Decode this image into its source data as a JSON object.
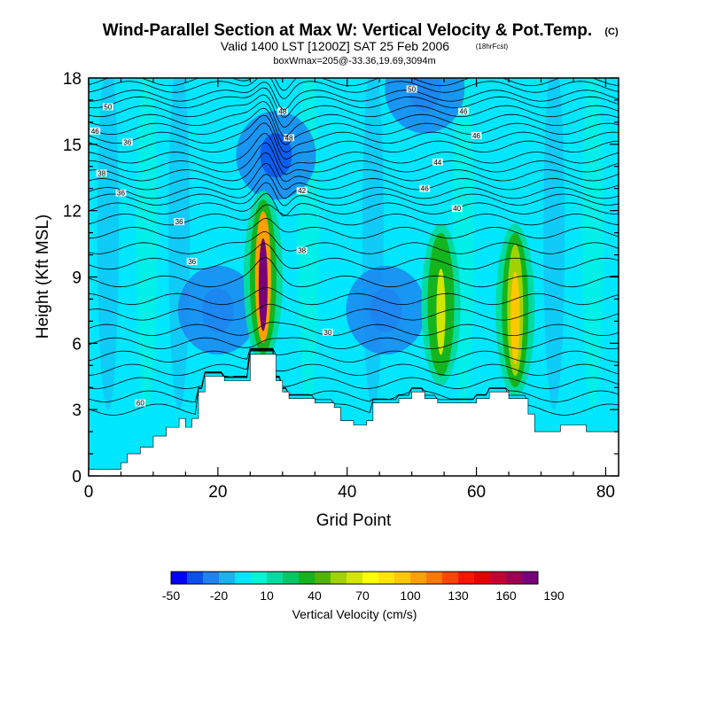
{
  "chart_data": {
    "type": "heatmap",
    "title": "Wind-Parallel Section at Max W: Vertical Velocity & Pot.Temp.",
    "title_mark": "(C)",
    "subtitle": "Valid 1400 LST [1200Z] SAT 25 Feb 2006",
    "subtitle_note": "(18hrFcst)",
    "info_line": "boxWmax=205@-33.36,19.69,3094m",
    "xlabel": "Grid Point",
    "ylabel": "Height (Kft MSL)",
    "xlim": [
      0,
      82
    ],
    "ylim": [
      0,
      18
    ],
    "x_ticks": [
      0,
      20,
      40,
      60,
      80
    ],
    "y_ticks": [
      0,
      3,
      6,
      9,
      12,
      15,
      18
    ],
    "colorbar": {
      "label": "Vertical Velocity (cm/s)",
      "tick_labels": [
        "-50",
        "-20",
        "10",
        "40",
        "70",
        "100",
        "130",
        "160",
        "190"
      ],
      "colors": [
        "#0000ff",
        "#0a50f0",
        "#1e82f0",
        "#19b4f0",
        "#00e6ff",
        "#00f5d2",
        "#00dca0",
        "#00c864",
        "#14b41e",
        "#50b400",
        "#a0d200",
        "#d2e600",
        "#ffff00",
        "#ffe600",
        "#ffc800",
        "#ffa000",
        "#ff7800",
        "#ff4600",
        "#ff1400",
        "#e60000",
        "#c80032",
        "#a00050",
        "#780078"
      ]
    },
    "updrafts": [
      {
        "x": 27,
        "y_bottom": 5.5,
        "y_top": 12.5,
        "peak": 205
      },
      {
        "x": 54.5,
        "y_bottom": 4.5,
        "y_top": 11,
        "peak": 60
      },
      {
        "x": 66,
        "y_bottom": 4,
        "y_top": 11,
        "peak": 90
      }
    ],
    "downdrafts": [
      {
        "x": 20,
        "y": 7.5,
        "value": -35
      },
      {
        "x": 46,
        "y": 7.5,
        "value": -30
      },
      {
        "x": 29,
        "y": 14.5,
        "value": -40
      },
      {
        "x": 52,
        "y": 17.5,
        "value": -30
      }
    ],
    "terrain": [
      [
        0,
        0.3
      ],
      [
        3,
        0.3
      ],
      [
        5,
        0.6
      ],
      [
        6,
        1.0
      ],
      [
        8,
        1.3
      ],
      [
        10,
        1.8
      ],
      [
        12,
        2.2
      ],
      [
        14,
        2.6
      ],
      [
        15,
        2.2
      ],
      [
        16,
        2.6
      ],
      [
        17,
        3.8
      ],
      [
        18,
        4.5
      ],
      [
        20,
        4.5
      ],
      [
        21,
        4.3
      ],
      [
        24,
        4.3
      ],
      [
        25,
        5.5
      ],
      [
        28,
        5.5
      ],
      [
        29,
        4.3
      ],
      [
        30,
        3.8
      ],
      [
        31,
        3.5
      ],
      [
        35,
        3.3
      ],
      [
        38,
        3.1
      ],
      [
        39,
        2.5
      ],
      [
        41,
        2.3
      ],
      [
        43,
        2.5
      ],
      [
        44,
        3.3
      ],
      [
        48,
        3.5
      ],
      [
        50,
        3.8
      ],
      [
        52,
        3.5
      ],
      [
        54,
        3.3
      ],
      [
        58,
        3.3
      ],
      [
        60,
        3.5
      ],
      [
        62,
        3.8
      ],
      [
        65,
        3.5
      ],
      [
        68,
        2.8
      ],
      [
        69,
        2.0
      ],
      [
        72,
        2.0
      ],
      [
        73,
        2.3
      ],
      [
        76,
        2.3
      ],
      [
        77,
        2.0
      ],
      [
        82,
        2.0
      ]
    ],
    "isentropes": [
      {
        "label": "60",
        "base": 3.0,
        "label_x": 8,
        "label_y": 3.3
      },
      {
        "label": "",
        "base": 3.6
      },
      {
        "label": "",
        "base": 4.2
      },
      {
        "label": "",
        "base": 4.8
      },
      {
        "label": "",
        "base": 5.4
      },
      {
        "label": "",
        "base": 6.0
      },
      {
        "label": "",
        "base": 6.6
      },
      {
        "label": "",
        "base": 7.3
      },
      {
        "label": "30",
        "base": 8.0,
        "label_x": 37,
        "label_y": 6.5
      },
      {
        "label": "",
        "base": 8.8
      },
      {
        "label": "36",
        "base": 9.6,
        "label_x": 16,
        "label_y": 9.7
      },
      {
        "label": "38",
        "base": 10.3,
        "label_x": 33,
        "label_y": 10.2
      },
      {
        "label": "",
        "base": 11.0
      },
      {
        "label": "36",
        "base": 11.6,
        "label_x": 14,
        "label_y": 11.5
      },
      {
        "label": "40",
        "base": 12.1,
        "label_x": 57,
        "label_y": 12.1
      },
      {
        "label": "",
        "base": 12.5
      },
      {
        "label": "36",
        "base": 12.8,
        "label_x": 5,
        "label_y": 12.8
      },
      {
        "label": "42",
        "base": 13.2,
        "label_x": 33,
        "label_y": 12.9
      },
      {
        "label": "46",
        "base": 13.6,
        "label_x": 52,
        "label_y": 13.0
      },
      {
        "label": "",
        "base": 14.0
      },
      {
        "label": "44",
        "base": 14.4,
        "label_x": 54,
        "label_y": 14.2
      },
      {
        "label": "38",
        "base": 14.9,
        "label_x": 2,
        "label_y": 13.7
      },
      {
        "label": "36",
        "base": 15.3,
        "label_x": 6,
        "label_y": 15.1
      },
      {
        "label": "48",
        "base": 15.7,
        "label_x": 31,
        "label_y": 15.3
      },
      {
        "label": "46",
        "base": 16.1,
        "label_x": 60,
        "label_y": 15.4
      },
      {
        "label": "46",
        "base": 16.5,
        "label_x": 1,
        "label_y": 15.6
      },
      {
        "label": "48",
        "base": 16.9,
        "label_x": 30,
        "label_y": 16.5
      },
      {
        "label": "46",
        "base": 17.2,
        "label_x": 58,
        "label_y": 16.5
      },
      {
        "label": "50",
        "base": 17.6,
        "label_x": 3,
        "label_y": 16.7
      },
      {
        "label": "50",
        "base": 17.9,
        "label_x": 50,
        "label_y": 17.5
      }
    ],
    "grid": false
  }
}
